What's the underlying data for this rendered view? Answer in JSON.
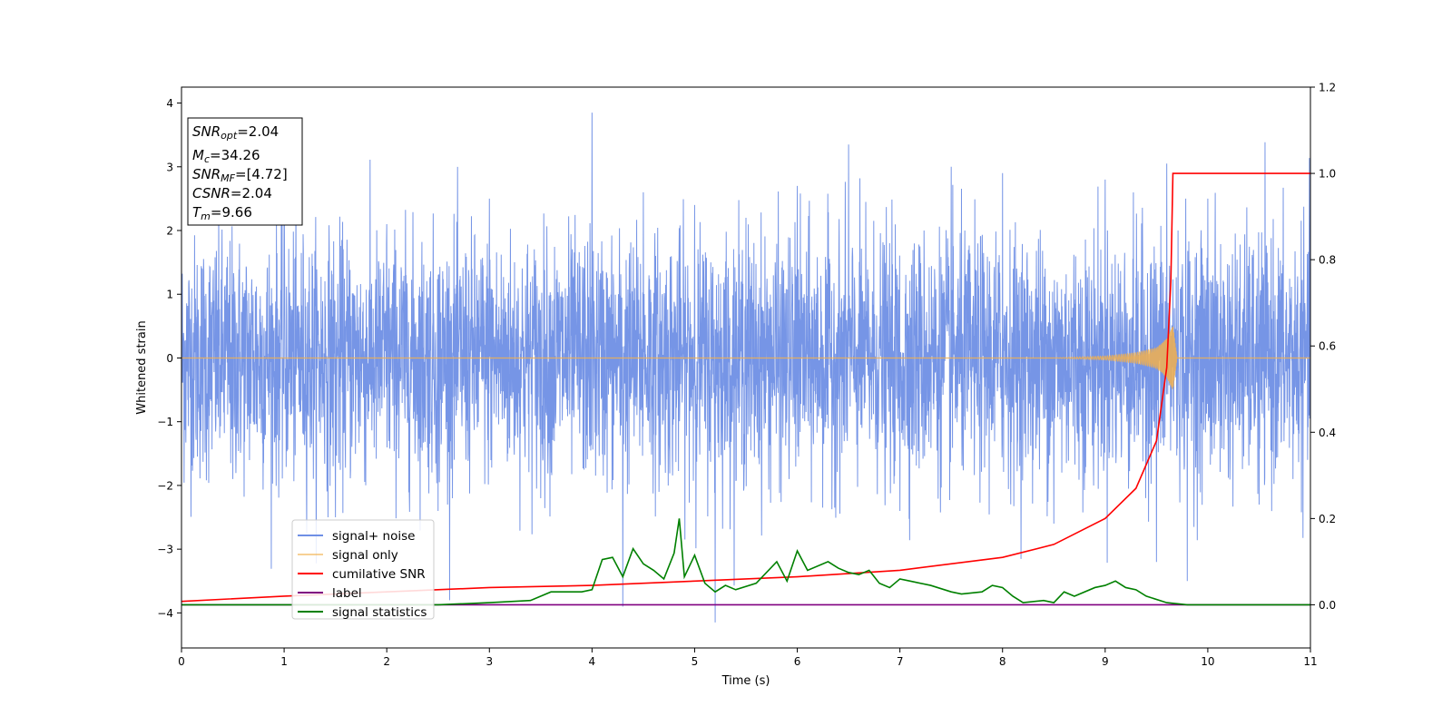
{
  "chart_data": {
    "type": "line",
    "xlabel": "Time (s)",
    "ylabel": "Whitened strain",
    "xlim": [
      0,
      11
    ],
    "ylim": [
      -4.55,
      4.25
    ],
    "y2lim": [
      -0.1,
      1.2
    ],
    "x_ticks": [
      0,
      1,
      2,
      3,
      4,
      5,
      6,
      7,
      8,
      9,
      10,
      11
    ],
    "y_ticks": [
      4,
      3,
      2,
      1,
      0,
      -1,
      -2,
      -3,
      -4
    ],
    "y2_ticks": [
      1.2,
      1.0,
      0.8,
      0.6,
      0.4,
      0.2,
      0.0
    ],
    "x_tick_labels": [
      "0",
      "1",
      "2",
      "3",
      "4",
      "5",
      "6",
      "7",
      "8",
      "9",
      "10",
      "11"
    ],
    "y_tick_labels": [
      "4",
      "3",
      "2",
      "1",
      "0",
      "−1",
      "−2",
      "−3",
      "−4"
    ],
    "y2_tick_labels": [
      "1.2",
      "1.0",
      "0.8",
      "0.6",
      "0.4",
      "0.2",
      "0.0"
    ],
    "legend_position": "lower-left",
    "series": [
      {
        "name": "signal+ noise",
        "axis": "left",
        "color": "#6f8fe5",
        "note_points": [
          [
            0,
            1.4
          ],
          [
            0.5,
            -1.9
          ],
          [
            1.0,
            2.3
          ],
          [
            1.5,
            -2.5
          ],
          [
            2.0,
            2.1
          ],
          [
            2.5,
            -2.4
          ],
          [
            3.0,
            2.5
          ],
          [
            3.5,
            -2.2
          ],
          [
            4.0,
            3.85
          ],
          [
            4.3,
            -3.9
          ],
          [
            4.5,
            2.6
          ],
          [
            5.0,
            2.4
          ],
          [
            5.2,
            -4.15
          ],
          [
            5.5,
            2.2
          ],
          [
            6.0,
            2.7
          ],
          [
            6.5,
            3.35
          ],
          [
            7.0,
            -2.4
          ],
          [
            7.5,
            3.0
          ],
          [
            8.0,
            2.9
          ],
          [
            8.5,
            -2.6
          ],
          [
            9.0,
            2.8
          ],
          [
            9.5,
            -3.2
          ],
          [
            9.6,
            3.05
          ],
          [
            9.8,
            -3.5
          ],
          [
            10.0,
            2.5
          ],
          [
            10.5,
            -2.3
          ],
          [
            11.0,
            2.45
          ]
        ]
      },
      {
        "name": "signal only",
        "axis": "left",
        "color": "#f2b04d",
        "points": [
          [
            0,
            0
          ],
          [
            8.5,
            0
          ],
          [
            9.0,
            0.03
          ],
          [
            9.3,
            0.08
          ],
          [
            9.5,
            0.15
          ],
          [
            9.6,
            0.3
          ],
          [
            9.66,
            0.5
          ],
          [
            9.7,
            0
          ],
          [
            11,
            0
          ]
        ]
      },
      {
        "name": "cumilative SNR",
        "axis": "right",
        "color": "#ff0000",
        "points": [
          [
            0,
            0.008
          ],
          [
            1,
            0.02
          ],
          [
            2,
            0.03
          ],
          [
            3,
            0.04
          ],
          [
            4,
            0.045
          ],
          [
            5,
            0.055
          ],
          [
            6,
            0.065
          ],
          [
            7,
            0.08
          ],
          [
            8,
            0.11
          ],
          [
            8.5,
            0.14
          ],
          [
            9.0,
            0.2
          ],
          [
            9.3,
            0.27
          ],
          [
            9.5,
            0.38
          ],
          [
            9.6,
            0.55
          ],
          [
            9.64,
            0.75
          ],
          [
            9.66,
            1.0
          ],
          [
            11,
            1.0
          ]
        ]
      },
      {
        "name": "label",
        "axis": "right",
        "color": "#800080",
        "points": [
          [
            0,
            0
          ],
          [
            11,
            0
          ]
        ]
      },
      {
        "name": "signal statistics",
        "axis": "right",
        "color": "#008000",
        "points": [
          [
            0,
            0
          ],
          [
            2.5,
            0
          ],
          [
            3.0,
            0.005
          ],
          [
            3.4,
            0.01
          ],
          [
            3.6,
            0.03
          ],
          [
            3.9,
            0.03
          ],
          [
            4.0,
            0.035
          ],
          [
            4.1,
            0.105
          ],
          [
            4.2,
            0.11
          ],
          [
            4.3,
            0.065
          ],
          [
            4.4,
            0.13
          ],
          [
            4.5,
            0.095
          ],
          [
            4.6,
            0.08
          ],
          [
            4.7,
            0.06
          ],
          [
            4.8,
            0.12
          ],
          [
            4.85,
            0.2
          ],
          [
            4.9,
            0.065
          ],
          [
            5.0,
            0.115
          ],
          [
            5.1,
            0.05
          ],
          [
            5.2,
            0.03
          ],
          [
            5.3,
            0.045
          ],
          [
            5.4,
            0.035
          ],
          [
            5.6,
            0.05
          ],
          [
            5.8,
            0.1
          ],
          [
            5.9,
            0.055
          ],
          [
            6.0,
            0.125
          ],
          [
            6.1,
            0.08
          ],
          [
            6.3,
            0.1
          ],
          [
            6.4,
            0.085
          ],
          [
            6.5,
            0.075
          ],
          [
            6.6,
            0.07
          ],
          [
            6.7,
            0.08
          ],
          [
            6.8,
            0.05
          ],
          [
            6.9,
            0.04
          ],
          [
            7.0,
            0.06
          ],
          [
            7.1,
            0.055
          ],
          [
            7.3,
            0.045
          ],
          [
            7.5,
            0.03
          ],
          [
            7.6,
            0.025
          ],
          [
            7.8,
            0.03
          ],
          [
            7.9,
            0.045
          ],
          [
            8.0,
            0.04
          ],
          [
            8.1,
            0.02
          ],
          [
            8.2,
            0.005
          ],
          [
            8.4,
            0.01
          ],
          [
            8.5,
            0.005
          ],
          [
            8.6,
            0.03
          ],
          [
            8.7,
            0.02
          ],
          [
            8.9,
            0.04
          ],
          [
            9.0,
            0.045
          ],
          [
            9.1,
            0.055
          ],
          [
            9.2,
            0.04
          ],
          [
            9.3,
            0.035
          ],
          [
            9.4,
            0.02
          ],
          [
            9.6,
            0.005
          ],
          [
            9.8,
            0
          ],
          [
            11,
            0
          ]
        ]
      }
    ],
    "info_box": [
      {
        "main": "SNR",
        "sub": "opt",
        "value": "=2.04"
      },
      {
        "main": "M",
        "sub": "c",
        "value": "=34.26"
      },
      {
        "main": "SNR",
        "sub": "MF",
        "value": "=[4.72]"
      },
      {
        "main": "CSNR",
        "sub": "",
        "value": "=2.04"
      },
      {
        "main": "T",
        "sub": "m",
        "value": "=9.66"
      }
    ]
  }
}
